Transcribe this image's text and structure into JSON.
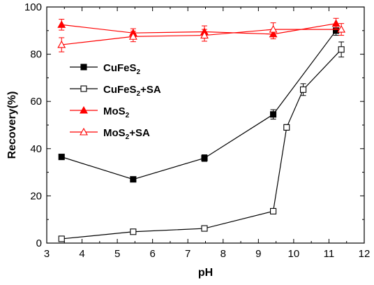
{
  "chart_data": {
    "type": "line",
    "title": "",
    "xlabel": "pH",
    "ylabel": "Recovery(%)",
    "xlim": [
      3,
      12
    ],
    "ylim": [
      0,
      100
    ],
    "x_ticks": [
      "3",
      "4",
      "5",
      "6",
      "7",
      "8",
      "9",
      "10",
      "11",
      "12"
    ],
    "y_ticks": [
      "0",
      "20",
      "40",
      "60",
      "80",
      "100"
    ],
    "grid": false,
    "legend_position": "center-left",
    "series": [
      {
        "name_main": "CuFeS",
        "name_sub": "2",
        "name_suffix": "",
        "marker": "filled-square",
        "color": "#000000",
        "x": [
          3.42,
          5.45,
          7.47,
          9.42,
          11.2
        ],
        "y": [
          36.5,
          27,
          36,
          54.5,
          90
        ],
        "error": [
          1.0,
          0.7,
          1.4,
          2.0,
          2.0
        ]
      },
      {
        "name_main": "CuFeS",
        "name_sub": "2",
        "name_suffix": "+SA",
        "marker": "open-square",
        "color": "#000000",
        "x": [
          3.42,
          5.45,
          7.47,
          9.42,
          9.8,
          10.27,
          11.35
        ],
        "y": [
          1.8,
          4.8,
          6.2,
          13.5,
          49,
          65,
          82
        ],
        "error": [
          0.6,
          0.6,
          0.7,
          0.8,
          1.2,
          2.5,
          3.2
        ]
      },
      {
        "name_main": "MoS",
        "name_sub": "2",
        "name_suffix": "",
        "marker": "filled-triangle",
        "color": "#ff0000",
        "x": [
          3.42,
          5.45,
          7.47,
          9.42,
          11.2
        ],
        "y": [
          92.5,
          89,
          89.5,
          88.5,
          93
        ],
        "error": [
          2.3,
          1.8,
          2.5,
          2.0,
          2.2
        ]
      },
      {
        "name_main": "MoS",
        "name_sub": "2",
        "name_suffix": "+SA",
        "marker": "open-triangle",
        "color": "#ff0000",
        "x": [
          3.42,
          5.45,
          7.47,
          9.42,
          11.35
        ],
        "y": [
          84,
          87.5,
          88,
          90.5,
          90.5
        ],
        "error": [
          3.0,
          2.2,
          2.5,
          2.8,
          2.5
        ]
      }
    ]
  }
}
